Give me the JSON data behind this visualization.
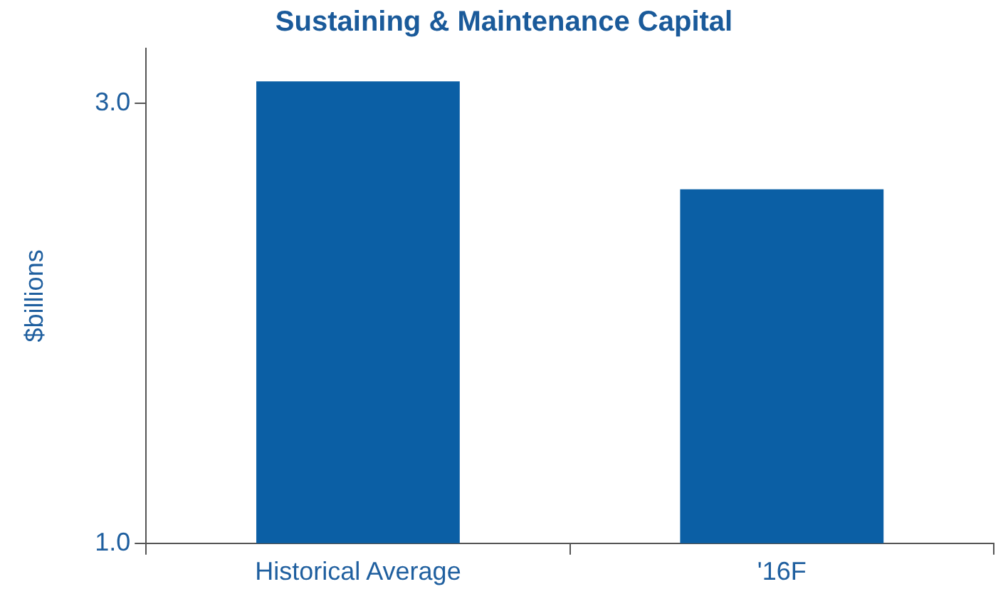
{
  "chart_data": {
    "type": "bar",
    "title": "Sustaining & Maintenance Capital",
    "ylabel": "$billions",
    "categories": [
      "Historical Average",
      "'16F"
    ],
    "values": [
      3.1,
      2.61
    ],
    "color": "#0b5fa5",
    "ylim": [
      1.0,
      3.25
    ],
    "yticks": [
      {
        "value": 1,
        "label": "1.0"
      },
      {
        "value": 3,
        "label": "3.0"
      }
    ],
    "grid": false,
    "legend": false
  }
}
